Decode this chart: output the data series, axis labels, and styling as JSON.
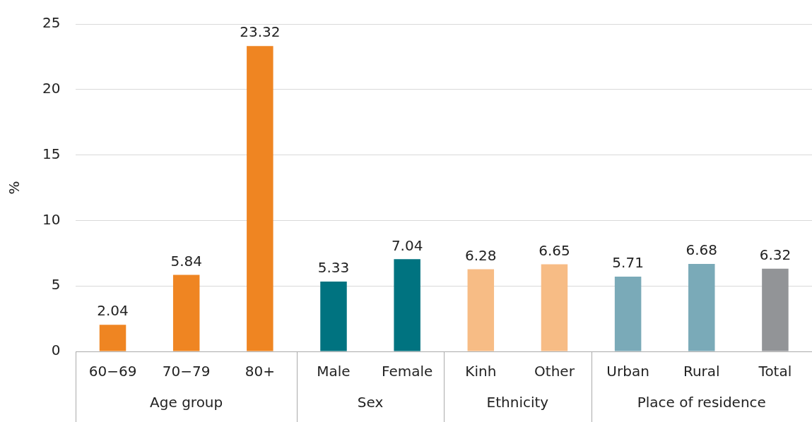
{
  "chart_data": {
    "type": "bar",
    "ylabel": "%",
    "categories": [
      "60−69",
      "70−79",
      "80+",
      "Male",
      "Female",
      "Kinh",
      "Other",
      "Urban",
      "Rural",
      "Total"
    ],
    "values": [
      2.04,
      5.84,
      23.32,
      5.33,
      7.04,
      6.28,
      6.65,
      5.71,
      6.68,
      6.32
    ],
    "colors": [
      "#ef8522",
      "#ef8522",
      "#ef8522",
      "#007380",
      "#007380",
      "#f7bc85",
      "#f7bc85",
      "#7aaab8",
      "#7aaab8",
      "#929497"
    ],
    "ylim": [
      0,
      25
    ],
    "yticks": [
      0,
      5,
      10,
      15,
      20,
      25
    ],
    "grid": "y",
    "legend": false,
    "data_labels": true,
    "annotations": [
      "Age group",
      "Sex",
      "Ethnicity",
      "Place of residence"
    ]
  }
}
